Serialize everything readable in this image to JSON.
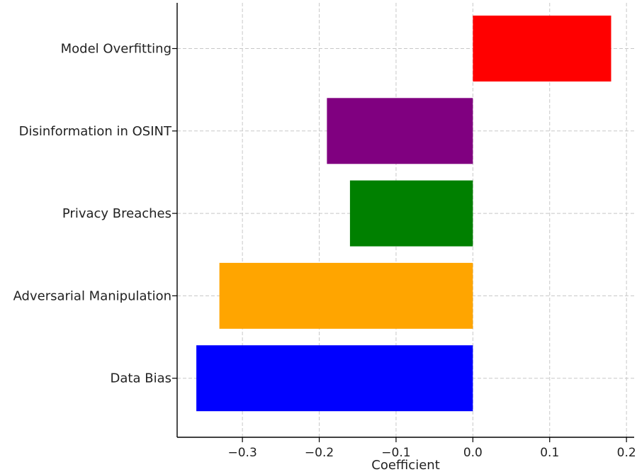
{
  "chart_data": {
    "type": "bar",
    "orientation": "horizontal",
    "categories": [
      "Data Bias",
      "Adversarial Manipulation",
      "Privacy Breaches",
      "Disinformation in OSINT",
      "Model Overfitting"
    ],
    "values": [
      -0.36,
      -0.33,
      -0.16,
      -0.19,
      0.18
    ],
    "colors": [
      "#0000ff",
      "#ffa500",
      "#008000",
      "#800080",
      "#ff0000"
    ],
    "xlabel": "Coefficient",
    "ylabel": "",
    "xlim": [
      -0.385,
      0.21
    ],
    "xticks": [
      -0.3,
      -0.2,
      -0.1,
      0.0,
      0.1,
      0.2
    ],
    "xtick_labels": [
      "−0.3",
      "−0.2",
      "−0.1",
      "0.0",
      "0.1",
      "0.2"
    ],
    "grid": true
  }
}
